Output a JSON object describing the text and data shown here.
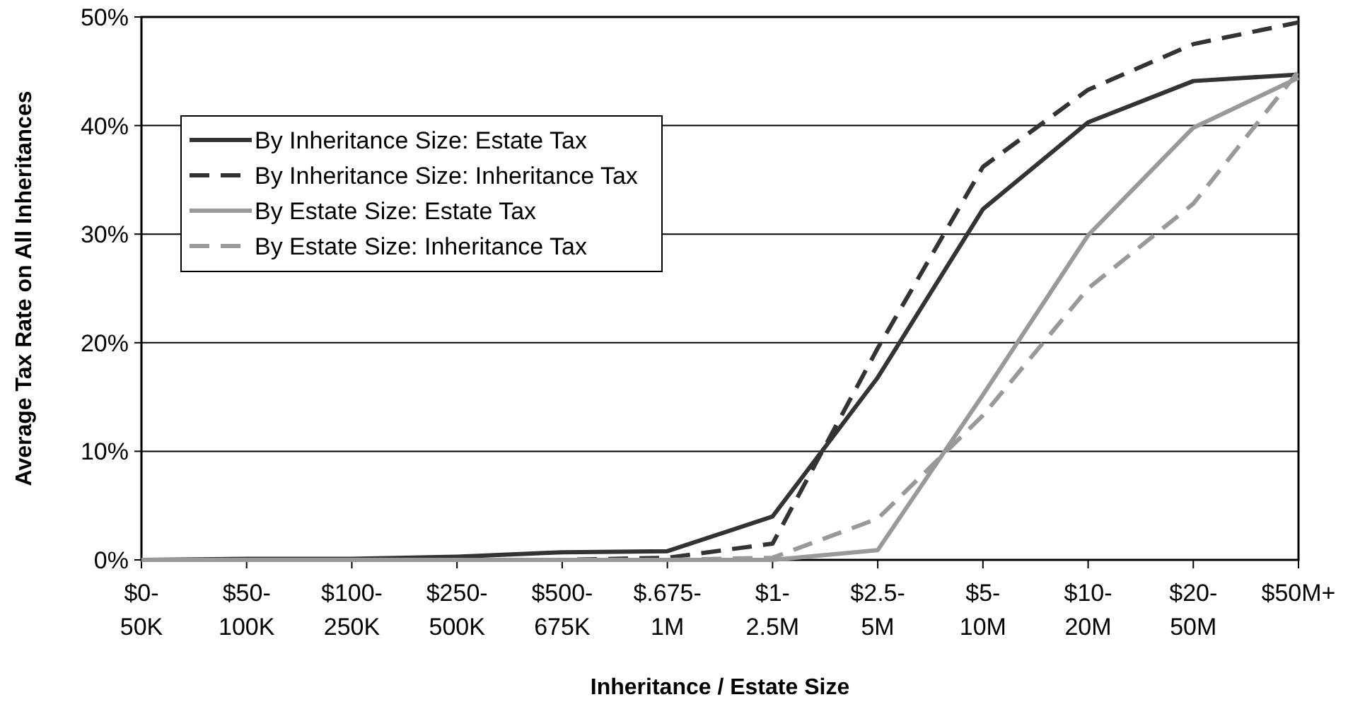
{
  "chart_data": {
    "type": "line",
    "xlabel": "Inheritance / Estate Size",
    "ylabel": "Average Tax Rate on All Inheritances",
    "categories": [
      "$0-50K",
      "$50-100K",
      "$100-250K",
      "$250-500K",
      "$500-675K",
      "$.675-1M",
      "$1-2.5M",
      "$2.5-5M",
      "$5-10M",
      "$10-20M",
      "$20-50M",
      "$50M+"
    ],
    "series": [
      {
        "name": "By Inheritance Size: Estate Tax",
        "color": "#333333",
        "line_style": "solid",
        "values": [
          0,
          0.1,
          0.1,
          0.3,
          0.7,
          0.8,
          4,
          16.8,
          32.3,
          40.3,
          44.1,
          44.7
        ]
      },
      {
        "name": "By Inheritance Size: Inheritance Tax",
        "color": "#333333",
        "line_style": "dashed",
        "values": [
          0,
          0,
          0,
          0,
          0,
          0.2,
          1.5,
          19.5,
          36.2,
          43.3,
          47.5,
          49.5
        ]
      },
      {
        "name": "By Estate Size: Estate Tax",
        "color": "#999999",
        "line_style": "solid",
        "values": [
          0,
          0,
          0,
          0,
          0,
          0,
          0,
          0.9,
          15.2,
          29.9,
          39.8,
          44.4
        ]
      },
      {
        "name": "By Estate Size: Inheritance Tax",
        "color": "#999999",
        "line_style": "dashed",
        "values": [
          0,
          0,
          0,
          0,
          0,
          0,
          0.2,
          3.8,
          13.3,
          25,
          32.8,
          45
        ]
      }
    ],
    "ylim": [
      0,
      50
    ],
    "yticks": [
      {
        "value": 0,
        "label": "0%"
      },
      {
        "value": 10,
        "label": "10%"
      },
      {
        "value": 20,
        "label": "20%"
      },
      {
        "value": 30,
        "label": "30%"
      },
      {
        "value": 40,
        "label": "40%"
      },
      {
        "value": 50,
        "label": "50%"
      }
    ],
    "grid": "y",
    "legend": "top left",
    "marker": "none"
  }
}
